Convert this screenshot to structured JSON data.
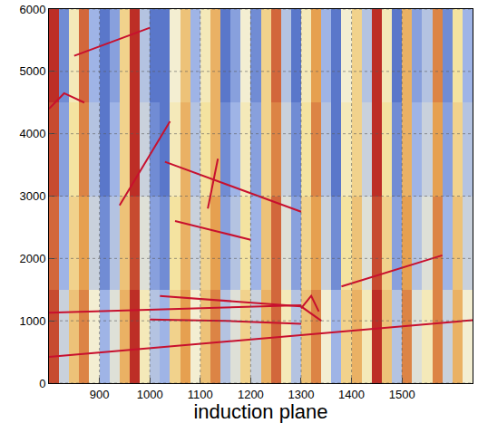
{
  "chart_data": {
    "type": "heatmap",
    "x_label": "induction plane",
    "xlim": [
      800,
      1640
    ],
    "ylim": [
      0,
      6000
    ],
    "xticks": [
      900,
      1000,
      1100,
      1200,
      1300,
      1400,
      1500
    ],
    "yticks": [
      0,
      1000,
      2000,
      3000,
      4000,
      5000,
      6000
    ],
    "grid": true,
    "cells": {
      "x": [
        800,
        820,
        840,
        860,
        880,
        900,
        920,
        940,
        960,
        980,
        1000,
        1020,
        1040,
        1060,
        1080,
        1100,
        1120,
        1140,
        1160,
        1180,
        1200,
        1220,
        1240,
        1260,
        1280,
        1300,
        1320,
        1340,
        1360,
        1380,
        1400,
        1420,
        1440,
        1460,
        1480,
        1500,
        1520,
        1540,
        1560,
        1580,
        1600,
        1620,
        1640
      ],
      "y": [
        0,
        1500,
        3000,
        4500,
        6000
      ],
      "z": [
        [
          0.8,
          -0.3,
          0.3,
          0.6,
          -0.1,
          -0.5,
          -0.2,
          0.4,
          0.9,
          0,
          -0.4,
          -0.5,
          0.2,
          0.5,
          -0.1,
          0.3,
          0.6,
          -0.4,
          -0.2,
          0.2,
          -0.3,
          0.4,
          0.7,
          0,
          -0.4,
          0.3,
          0.6,
          -0.1,
          -0.5,
          0.2,
          0.4,
          0,
          0.9,
          0.3,
          -0.4,
          0.6,
          -0.2,
          0,
          0.6,
          -0.3,
          0.4,
          -0.1
        ],
        [
          0.7,
          -0.5,
          0.2,
          0.5,
          -0.3,
          -0.7,
          -0.4,
          0.3,
          0.8,
          -0.2,
          -0.6,
          -0.7,
          0.1,
          0.4,
          -0.3,
          0.2,
          0.5,
          -0.6,
          -0.4,
          0.1,
          -0.5,
          0.3,
          0.7,
          -0.2,
          -0.6,
          0.2,
          0.5,
          -0.3,
          -0.7,
          0.1,
          0.3,
          -0.2,
          0.8,
          0.2,
          -0.6,
          0.5,
          -0.4,
          -0.2,
          0.6,
          -0.5,
          0.3,
          -0.3
        ],
        [
          0.8,
          -0.6,
          0.1,
          0.6,
          -0.4,
          -0.8,
          -0.5,
          0.2,
          0.9,
          -0.3,
          -0.7,
          -0.8,
          0,
          0.4,
          -0.4,
          0.1,
          0.4,
          -0.7,
          -0.5,
          0,
          -0.6,
          0.2,
          0.6,
          -0.3,
          -0.7,
          0.1,
          0.6,
          -0.4,
          -0.8,
          0,
          0.2,
          -0.3,
          0.9,
          0.1,
          -0.7,
          0.4,
          -0.5,
          -0.3,
          0.5,
          -0.6,
          0.2,
          -0.4
        ],
        [
          0.9,
          -0.7,
          0,
          0.7,
          -0.5,
          -0.8,
          -0.6,
          0.2,
          0.9,
          -0.4,
          -0.8,
          -0.8,
          -0.1,
          0.3,
          -0.5,
          0,
          0.4,
          -0.8,
          -0.6,
          -0.1,
          -0.7,
          0.2,
          0.7,
          -0.4,
          -0.8,
          0,
          0.5,
          -0.5,
          -0.8,
          -0.1,
          0.2,
          -0.4,
          0.9,
          0,
          -0.8,
          0.4,
          -0.6,
          -0.4,
          0.6,
          -0.7,
          0.1,
          -0.5
        ]
      ]
    },
    "zlim": [
      -1,
      1
    ],
    "tracks": [
      {
        "color": "#c8102e",
        "x": [
          800,
          1640
        ],
        "y": [
          420,
          1010
        ]
      },
      {
        "color": "#c8102e",
        "x": [
          800,
          1000,
          1300
        ],
        "y": [
          1130,
          1180,
          1250
        ]
      },
      {
        "color": "#c8102e",
        "x": [
          1020,
          1300,
          1340
        ],
        "y": [
          1400,
          1230,
          1000
        ]
      },
      {
        "color": "#c8102e",
        "x": [
          1000,
          1150,
          1300
        ],
        "y": [
          1020,
          1000,
          950
        ]
      },
      {
        "color": "#c8102e",
        "x": [
          940,
          1040
        ],
        "y": [
          2850,
          4200
        ]
      },
      {
        "color": "#c8102e",
        "x": [
          1030,
          1300
        ],
        "y": [
          3550,
          2750
        ]
      },
      {
        "color": "#c8102e",
        "x": [
          1050,
          1200
        ],
        "y": [
          2600,
          2300
        ]
      },
      {
        "color": "#c8102e",
        "x": [
          1115,
          1125,
          1135
        ],
        "y": [
          2800,
          3200,
          3600
        ]
      },
      {
        "color": "#c8102e",
        "x": [
          850,
          1000
        ],
        "y": [
          5250,
          5700
        ]
      },
      {
        "color": "#c8102e",
        "x": [
          1300,
          1320,
          1335
        ],
        "y": [
          1200,
          1400,
          1150
        ]
      },
      {
        "color": "#c8102e",
        "x": [
          800,
          830,
          870
        ],
        "y": [
          4400,
          4650,
          4500
        ]
      },
      {
        "color": "#c8102e",
        "x": [
          1380,
          1580
        ],
        "y": [
          1550,
          2050
        ]
      }
    ]
  }
}
